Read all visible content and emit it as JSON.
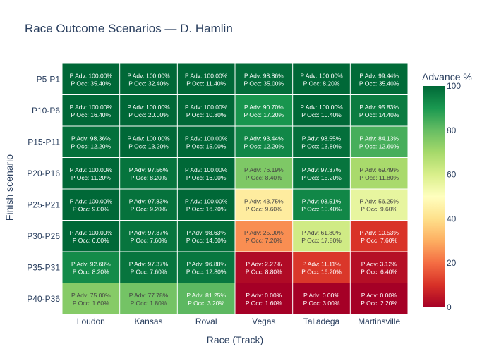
{
  "chart_data": {
    "type": "heatmap",
    "title": "Race Outcome Scenarios — D. Hamlin",
    "xlabel": "Race (Track)",
    "ylabel": "Finish scenario",
    "x_categories": [
      "Loudon",
      "Kansas",
      "Roval",
      "Vegas",
      "Talladega",
      "Martinsville"
    ],
    "y_categories": [
      "P5-P1",
      "P10-P6",
      "P15-P11",
      "P20-P16",
      "P25-P21",
      "P30-P26",
      "P35-P31",
      "P40-P36"
    ],
    "colorbar": {
      "title": "Advance %",
      "range": [
        0,
        100
      ],
      "ticks": [
        "0",
        "20",
        "40",
        "60",
        "80",
        "100"
      ],
      "colorscale": "RdYlGn"
    },
    "advance_pct": [
      [
        100.0,
        100.0,
        100.0,
        98.86,
        100.0,
        99.44
      ],
      [
        100.0,
        100.0,
        100.0,
        90.7,
        100.0,
        95.83
      ],
      [
        98.36,
        100.0,
        100.0,
        93.44,
        98.55,
        84.13
      ],
      [
        100.0,
        97.56,
        100.0,
        76.19,
        97.37,
        69.49
      ],
      [
        100.0,
        97.83,
        100.0,
        43.75,
        93.51,
        56.25
      ],
      [
        100.0,
        97.37,
        98.63,
        25.0,
        61.8,
        10.53
      ],
      [
        92.68,
        97.37,
        96.88,
        2.27,
        11.11,
        3.12
      ],
      [
        75.0,
        77.78,
        81.25,
        0.0,
        0.0,
        0.0
      ]
    ],
    "occurrence_pct": [
      [
        35.4,
        32.4,
        11.4,
        35.0,
        8.2,
        35.4
      ],
      [
        16.4,
        20.0,
        10.8,
        17.2,
        10.4,
        14.4
      ],
      [
        12.2,
        13.2,
        15.0,
        12.2,
        13.8,
        12.6
      ],
      [
        11.2,
        8.2,
        16.0,
        8.4,
        15.2,
        11.8
      ],
      [
        9.0,
        9.2,
        16.2,
        9.6,
        15.4,
        9.6
      ],
      [
        6.0,
        7.6,
        14.6,
        7.2,
        17.8,
        7.6
      ],
      [
        8.2,
        7.6,
        12.8,
        8.8,
        16.2,
        6.4
      ],
      [
        1.6,
        1.8,
        3.2,
        1.6,
        3.0,
        2.2
      ]
    ],
    "cell_labels": [
      [
        [
          "P Adv: 100.00%",
          "P Occ: 35.40%"
        ],
        [
          "P Adv: 100.00%",
          "P Occ: 32.40%"
        ],
        [
          "P Adv: 100.00%",
          "P Occ: 11.40%"
        ],
        [
          "P Adv: 98.86%",
          "P Occ: 35.00%"
        ],
        [
          "P Adv: 100.00%",
          "P Occ: 8.20%"
        ],
        [
          "P Adv: 99.44%",
          "P Occ: 35.40%"
        ]
      ],
      [
        [
          "P Adv: 100.00%",
          "P Occ: 16.40%"
        ],
        [
          "P Adv: 100.00%",
          "P Occ: 20.00%"
        ],
        [
          "P Adv: 100.00%",
          "P Occ: 10.80%"
        ],
        [
          "P Adv: 90.70%",
          "P Occ: 17.20%"
        ],
        [
          "P Adv: 100.00%",
          "P Occ: 10.40%"
        ],
        [
          "P Adv: 95.83%",
          "P Occ: 14.40%"
        ]
      ],
      [
        [
          "P Adv: 98.36%",
          "P Occ: 12.20%"
        ],
        [
          "P Adv: 100.00%",
          "P Occ: 13.20%"
        ],
        [
          "P Adv: 100.00%",
          "P Occ: 15.00%"
        ],
        [
          "P Adv: 93.44%",
          "P Occ: 12.20%"
        ],
        [
          "P Adv: 98.55%",
          "P Occ: 13.80%"
        ],
        [
          "P Adv: 84.13%",
          "P Occ: 12.60%"
        ]
      ],
      [
        [
          "P Adv: 100.00%",
          "P Occ: 11.20%"
        ],
        [
          "P Adv: 97.56%",
          "P Occ: 8.20%"
        ],
        [
          "P Adv: 100.00%",
          "P Occ: 16.00%"
        ],
        [
          "P Adv: 76.19%",
          "P Occ: 8.40%"
        ],
        [
          "P Adv: 97.37%",
          "P Occ: 15.20%"
        ],
        [
          "P Adv: 69.49%",
          "P Occ: 11.80%"
        ]
      ],
      [
        [
          "P Adv: 100.00%",
          "P Occ: 9.00%"
        ],
        [
          "P Adv: 97.83%",
          "P Occ: 9.20%"
        ],
        [
          "P Adv: 100.00%",
          "P Occ: 16.20%"
        ],
        [
          "P Adv: 43.75%",
          "P Occ: 9.60%"
        ],
        [
          "P Adv: 93.51%",
          "P Occ: 15.40%"
        ],
        [
          "P Adv: 56.25%",
          "P Occ: 9.60%"
        ]
      ],
      [
        [
          "P Adv: 100.00%",
          "P Occ: 6.00%"
        ],
        [
          "P Adv: 97.37%",
          "P Occ: 7.60%"
        ],
        [
          "P Adv: 98.63%",
          "P Occ: 14.60%"
        ],
        [
          "P Adv: 25.00%",
          "P Occ: 7.20%"
        ],
        [
          "P Adv: 61.80%",
          "P Occ: 17.80%"
        ],
        [
          "P Adv: 10.53%",
          "P Occ: 7.60%"
        ]
      ],
      [
        [
          "P Adv: 92.68%",
          "P Occ: 8.20%"
        ],
        [
          "P Adv: 97.37%",
          "P Occ: 7.60%"
        ],
        [
          "P Adv: 96.88%",
          "P Occ: 12.80%"
        ],
        [
          "P Adv: 2.27%",
          "P Occ: 8.80%"
        ],
        [
          "P Adv: 11.11%",
          "P Occ: 16.20%"
        ],
        [
          "P Adv: 3.12%",
          "P Occ: 6.40%"
        ]
      ],
      [
        [
          "P Adv: 75.00%",
          "P Occ: 1.60%"
        ],
        [
          "P Adv: 77.78%",
          "P Occ: 1.80%"
        ],
        [
          "P Adv: 81.25%",
          "P Occ: 3.20%"
        ],
        [
          "P Adv: 0.00%",
          "P Occ: 1.60%"
        ],
        [
          "P Adv: 0.00%",
          "P Occ: 3.00%"
        ],
        [
          "P Adv: 0.00%",
          "P Occ: 2.20%"
        ]
      ]
    ]
  }
}
